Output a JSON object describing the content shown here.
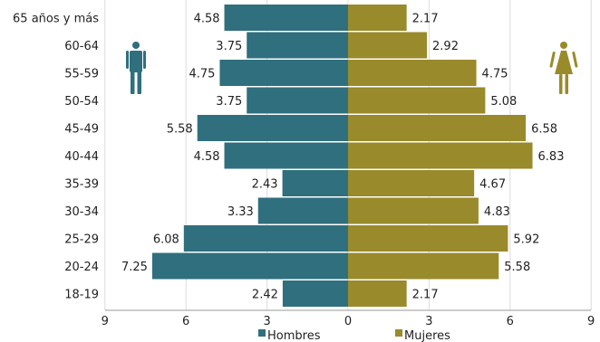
{
  "chart_data": {
    "type": "bar",
    "orientation": "horizontal",
    "layout": "population-pyramid",
    "categories": [
      "65 años y más",
      "60-64",
      "55-59",
      "50-54",
      "45-49",
      "40-44",
      "35-39",
      "30-34",
      "25-29",
      "20-24",
      "18-19"
    ],
    "series": [
      {
        "name": "Hombres",
        "side": "left",
        "color": "#2f6f7e",
        "values": [
          4.58,
          3.75,
          4.75,
          3.75,
          5.58,
          4.58,
          2.43,
          3.33,
          6.08,
          7.25,
          2.42
        ]
      },
      {
        "name": "Mujeres",
        "side": "right",
        "color": "#998a2b",
        "values": [
          2.17,
          2.92,
          4.75,
          5.08,
          6.58,
          6.83,
          4.67,
          4.83,
          5.92,
          5.58,
          2.17
        ]
      }
    ],
    "xlim": [
      -9,
      9
    ],
    "x_ticks": [
      -9,
      -6,
      -3,
      0,
      3,
      6,
      9
    ],
    "x_tick_labels": [
      "9",
      "6",
      "3",
      "0",
      "3",
      "6",
      "9"
    ],
    "grid": "vertical",
    "legend_position": "bottom",
    "icons": {
      "left": "male-figure-icon",
      "right": "female-figure-icon"
    },
    "colors": {
      "grid": "#dcdcdc",
      "male": "#2f6f7e",
      "female": "#998a2b"
    }
  }
}
